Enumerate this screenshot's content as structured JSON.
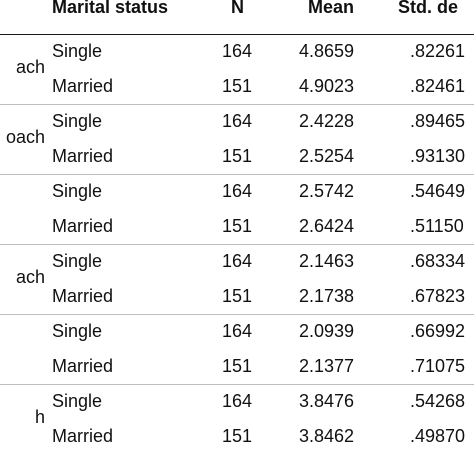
{
  "headers": {
    "marital_status": "Marital status",
    "n": "N",
    "mean": "Mean",
    "std": "Std. de"
  },
  "groups": [
    {
      "label": "ach",
      "rows": [
        {
          "status": "Single",
          "n": "164",
          "mean": "4.8659",
          "std": ".82261"
        },
        {
          "status": "Married",
          "n": "151",
          "mean": "4.9023",
          "std": ".82461"
        }
      ]
    },
    {
      "label": "oach",
      "rows": [
        {
          "status": "Single",
          "n": "164",
          "mean": "2.4228",
          "std": ".89465"
        },
        {
          "status": "Married",
          "n": "151",
          "mean": "2.5254",
          "std": ".93130"
        }
      ]
    },
    {
      "label": "",
      "rows": [
        {
          "status": "Single",
          "n": "164",
          "mean": "2.5742",
          "std": ".54649"
        },
        {
          "status": "Married",
          "n": "151",
          "mean": "2.6424",
          "std": ".51150"
        }
      ]
    },
    {
      "label": "ach",
      "rows": [
        {
          "status": "Single",
          "n": "164",
          "mean": "2.1463",
          "std": ".68334"
        },
        {
          "status": "Married",
          "n": "151",
          "mean": "2.1738",
          "std": ".67823"
        }
      ]
    },
    {
      "label": "",
      "rows": [
        {
          "status": "Single",
          "n": "164",
          "mean": "2.0939",
          "std": ".66992"
        },
        {
          "status": "Married",
          "n": "151",
          "mean": "2.1377",
          "std": ".71075"
        }
      ]
    },
    {
      "label": "h",
      "rows": [
        {
          "status": "Single",
          "n": "164",
          "mean": "3.8476",
          "std": ".54268"
        },
        {
          "status": "Married",
          "n": "151",
          "mean": "3.8462",
          "std": ".49870"
        }
      ]
    }
  ]
}
